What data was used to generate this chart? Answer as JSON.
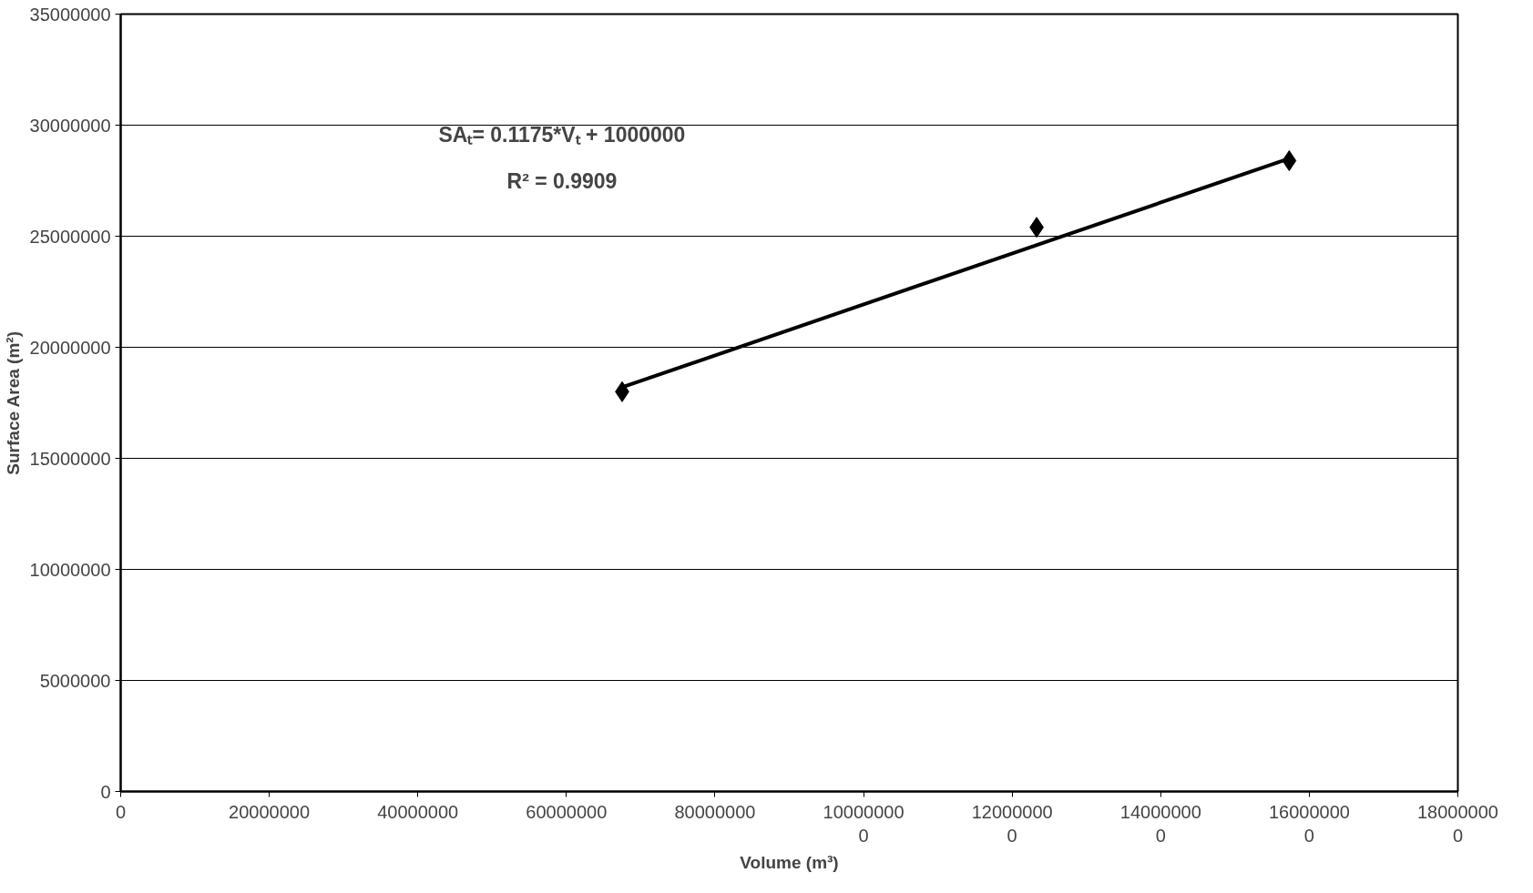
{
  "chart_data": {
    "type": "scatter",
    "xlabel": "Volume (m³)",
    "ylabel": "Surface Area (m²)",
    "marker": "diamond",
    "grid": "y",
    "annotations": [
      "SAₜ= 0.1175*Vₜ + 1000000",
      "R² = 0.9909"
    ],
    "xlim": [
      0,
      180000000
    ],
    "xticks": [
      0,
      20000000,
      40000000,
      60000000,
      80000000,
      100000000,
      120000000,
      140000000,
      160000000,
      180000000
    ],
    "ylim": [
      0,
      35000000
    ],
    "yticks": [
      0,
      5000000,
      10000000,
      15000000,
      20000000,
      25000000,
      30000000,
      35000000
    ],
    "series": [
      {
        "color": "#000000",
        "x": [
          67500000,
          123300000,
          157300000
        ],
        "values": [
          18000000,
          25400000,
          28400000
        ]
      },
      {
        "type": "line",
        "color": "#000000",
        "marker": "none",
        "x": [
          67500000,
          157300000
        ],
        "values": [
          18200000,
          28500000
        ]
      }
    ]
  }
}
